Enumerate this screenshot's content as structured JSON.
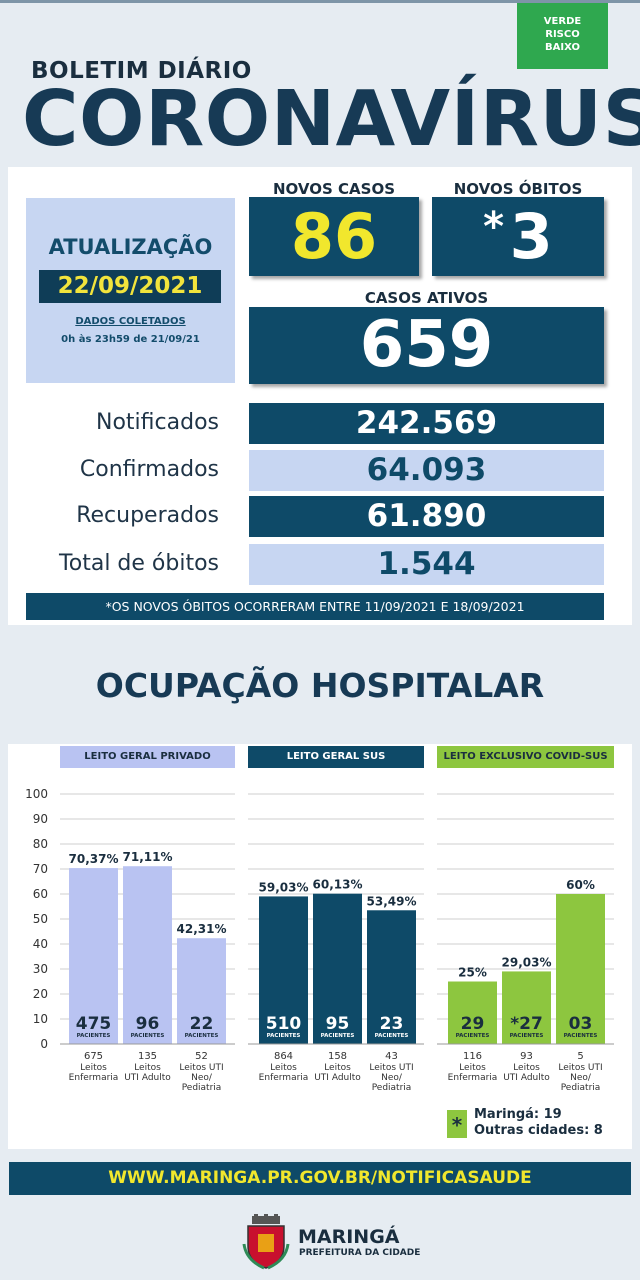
{
  "header": {
    "risk_badge": [
      "VERDE",
      "RISCO",
      "BAIXO"
    ],
    "subtitle": "BOLETIM DIÁRIO",
    "title": "CORONAVÍRUS"
  },
  "update": {
    "label": "ATUALIZAÇÃO",
    "date": "22/09/2021",
    "collected_label": "DADOS COLETADOS",
    "collected_period": "0h às 23h59 de 21/09/21"
  },
  "highlights": {
    "new_cases_label": "NOVOS CASOS",
    "new_cases": "86",
    "new_deaths_label": "NOVOS ÓBITOS",
    "new_deaths_mark": "*",
    "new_deaths": "3",
    "active_label": "CASOS ATIVOS",
    "active": "659"
  },
  "totals": [
    {
      "label": "Notificados",
      "value": "242.569"
    },
    {
      "label": "Confirmados",
      "value": "64.093"
    },
    {
      "label": "Recuperados",
      "value": "61.890"
    },
    {
      "label": "Total de óbitos",
      "value": "1.544"
    }
  ],
  "note": "*OS NOVOS ÓBITOS OCORRERAM ENTRE 11/09/2021 E 18/09/2021",
  "occupancy_title": "OCUPAÇÃO HOSPITALAR",
  "colors": {
    "dark_blue": "#0e4a68",
    "light_blue": "#c7d6f2",
    "lavender": "#b9c3f2",
    "green": "#8dc63f",
    "yellow": "#f1e72d"
  },
  "chart_data": {
    "type": "bar",
    "ylim": [
      0,
      100
    ],
    "yticks": [
      0,
      10,
      20,
      30,
      40,
      50,
      60,
      70,
      80,
      90,
      100
    ],
    "grid": true,
    "patients_label": "PACIENTES",
    "groups": [
      {
        "name": "LEITO GERAL PRIVADO",
        "color": "#b9c3f2",
        "header_color": "#b9c3f2",
        "bars": [
          {
            "value": 70.37,
            "pct_label": "70,37%",
            "patients": "475",
            "beds": "675",
            "category": "Leitos Enfermaria"
          },
          {
            "value": 71.11,
            "pct_label": "71,11%",
            "patients": "96",
            "beds": "135",
            "category": "Leitos UTI Adulto"
          },
          {
            "value": 42.31,
            "pct_label": "42,31%",
            "patients": "22",
            "beds": "52",
            "category": "Leitos UTI Neo/ Pediatria"
          }
        ]
      },
      {
        "name": "LEITO GERAL SUS",
        "color": "#0e4a68",
        "header_color": "#0e4a68",
        "bars": [
          {
            "value": 59.03,
            "pct_label": "59,03%",
            "patients": "510",
            "beds": "864",
            "category": "Leitos Enfermaria"
          },
          {
            "value": 60.13,
            "pct_label": "60,13%",
            "patients": "95",
            "beds": "158",
            "category": "Leitos UTI Adulto"
          },
          {
            "value": 53.49,
            "pct_label": "53,49%",
            "patients": "23",
            "beds": "43",
            "category": "Leitos UTI Neo/ Pediatria"
          }
        ]
      },
      {
        "name": "LEITO EXCLUSIVO COVID-SUS",
        "color": "#8dc63f",
        "header_color": "#8dc63f",
        "bars": [
          {
            "value": 25,
            "pct_label": "25%",
            "patients": "29",
            "beds": "116",
            "category": "Leitos Enfermaria"
          },
          {
            "value": 29.03,
            "pct_label": "29,03%",
            "patients": "*27",
            "beds": "93",
            "category": "Leitos UTI Adulto"
          },
          {
            "value": 60,
            "pct_label": "60%",
            "patients": "03",
            "beds": "5",
            "category": "Leitos UTI Neo/ Pediatria"
          }
        ]
      }
    ],
    "legend": {
      "mark": "*",
      "line1": "Maringá: 19",
      "line2": "Outras cidades: 8"
    }
  },
  "footer": {
    "url": "WWW.MARINGA.PR.GOV.BR/NOTIFICASAUDE",
    "city": "MARINGÁ",
    "city_sub": "PREFEITURA DA CIDADE"
  }
}
